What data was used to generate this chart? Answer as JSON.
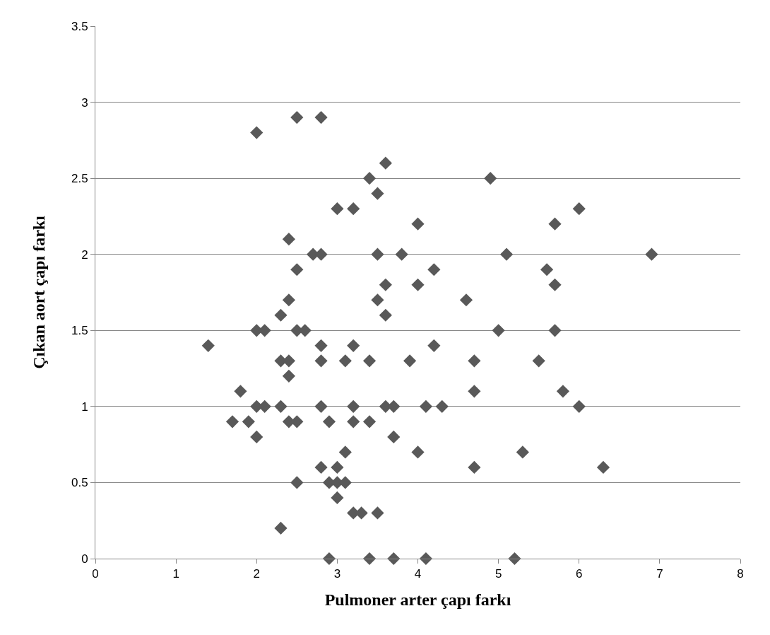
{
  "chart_data": {
    "type": "scatter",
    "xlabel": "Pulmoner arter çapı farkı",
    "ylabel": "Çıkan aort çapı farkı",
    "x": [
      2.0,
      2.5,
      2.8,
      3.6,
      3.4,
      4.9,
      3.5,
      3.0,
      3.2,
      6.0,
      4.0,
      5.7,
      2.4,
      2.7,
      2.8,
      3.5,
      3.8,
      5.1,
      6.9,
      2.5,
      4.2,
      5.6,
      3.6,
      4.0,
      5.7,
      2.4,
      3.5,
      4.6,
      2.3,
      3.6,
      2.0,
      2.1,
      2.5,
      2.6,
      5.0,
      5.7,
      1.4,
      2.8,
      3.2,
      4.2,
      2.3,
      2.4,
      2.8,
      3.1,
      3.4,
      3.9,
      4.7,
      5.5,
      2.4,
      1.8,
      4.7,
      5.8,
      2.0,
      2.1,
      2.3,
      2.8,
      3.2,
      3.6,
      3.7,
      4.1,
      4.3,
      6.0,
      1.7,
      1.9,
      2.4,
      2.5,
      2.9,
      3.2,
      3.4,
      2.0,
      3.7,
      3.1,
      4.0,
      5.3,
      2.8,
      3.0,
      4.7,
      6.3,
      2.5,
      2.9,
      3.0,
      3.1,
      3.0,
      3.2,
      3.3,
      3.5,
      2.3,
      2.9,
      3.4,
      3.7,
      4.1,
      5.2
    ],
    "values": [
      2.8,
      2.9,
      2.9,
      2.6,
      2.5,
      2.5,
      2.4,
      2.3,
      2.3,
      2.3,
      2.2,
      2.2,
      2.1,
      2.0,
      2.0,
      2.0,
      2.0,
      2.0,
      2.0,
      1.9,
      1.9,
      1.9,
      1.8,
      1.8,
      1.8,
      1.7,
      1.7,
      1.7,
      1.6,
      1.6,
      1.5,
      1.5,
      1.5,
      1.5,
      1.5,
      1.5,
      1.4,
      1.4,
      1.4,
      1.4,
      1.3,
      1.3,
      1.3,
      1.3,
      1.3,
      1.3,
      1.3,
      1.3,
      1.2,
      1.1,
      1.1,
      1.1,
      1.0,
      1.0,
      1.0,
      1.0,
      1.0,
      1.0,
      1.0,
      1.0,
      1.0,
      1.0,
      0.9,
      0.9,
      0.9,
      0.9,
      0.9,
      0.9,
      0.9,
      0.8,
      0.8,
      0.7,
      0.7,
      0.7,
      0.6,
      0.6,
      0.6,
      0.6,
      0.5,
      0.5,
      0.5,
      0.5,
      0.4,
      0.3,
      0.3,
      0.3,
      0.2,
      0.0,
      0.0,
      0.0,
      0.0,
      0.0
    ],
    "color": "#595959",
    "marker": "diamond",
    "xlim": [
      0,
      8
    ],
    "xticks": [
      0,
      1,
      2,
      3,
      4,
      5,
      6,
      7,
      8
    ],
    "ylim": [
      0,
      3.5
    ],
    "yticks": [
      0,
      0.5,
      1,
      1.5,
      2,
      2.5,
      3,
      3.5
    ],
    "grid": "y"
  }
}
